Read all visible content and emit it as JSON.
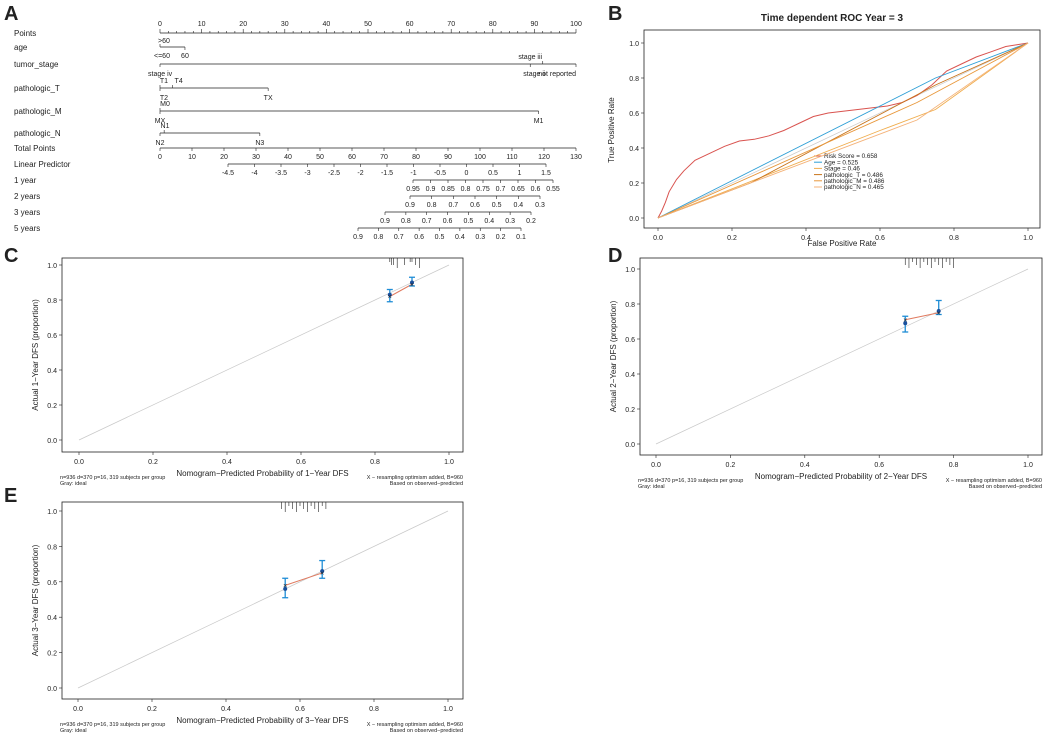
{
  "panels": {
    "A": "A",
    "B": "B",
    "C": "C",
    "D": "D",
    "E": "E"
  },
  "colors": {
    "ink": "#222222",
    "ideal": "#c9c9c9",
    "cal_line": "#e07a5f",
    "err": "#1f8dd6",
    "point": "#1a4f9c",
    "roc_risk": "#d9534f",
    "roc_age": "#2e9fd6",
    "roc_stage": "#f0ad4e",
    "roc_t": "#c8741a",
    "roc_m": "#e8973a",
    "roc_n": "#f4b37a"
  },
  "nomogram": {
    "rows": [
      {
        "label": "Points"
      },
      {
        "label": "age"
      },
      {
        "label": "tumor_stage"
      },
      {
        "label": "pathologic_T"
      },
      {
        "label": "pathologic_M"
      },
      {
        "label": "pathologic_N"
      },
      {
        "label": "Total Points"
      },
      {
        "label": "Linear Predictor"
      },
      {
        "label": "1 year"
      },
      {
        "label": "2 years"
      },
      {
        "label": "3 years"
      },
      {
        "label": "5 years"
      }
    ],
    "points_scale": {
      "min": 0,
      "max": 100,
      "labels": [
        0,
        10,
        20,
        30,
        40,
        50,
        60,
        70,
        80,
        90,
        100
      ]
    },
    "age": {
      "span": [
        0,
        6
      ],
      "labels": [
        ">60",
        "<=60",
        "60"
      ]
    },
    "tumor_stage": {
      "span": [
        0,
        100
      ],
      "labels": [
        "stage iii",
        "stage iv",
        "stage ii",
        "not reported"
      ]
    },
    "pathologic_T": {
      "span": [
        0,
        26
      ],
      "labels": [
        "T1",
        "T4",
        "T2",
        "TX"
      ]
    },
    "pathologic_M": {
      "span": [
        0,
        89
      ],
      "labels": [
        "M0",
        "MX",
        "M1"
      ]
    },
    "pathologic_N": {
      "span": [
        0,
        23
      ],
      "labels": [
        "N1",
        "N2",
        "N3"
      ]
    },
    "total_points": {
      "min": 0,
      "max": 130,
      "labels": [
        0,
        10,
        20,
        30,
        40,
        50,
        60,
        70,
        80,
        90,
        100,
        110,
        120,
        130
      ]
    },
    "linear_predictor": {
      "labels": [
        "-4.5",
        "-4",
        "-3.5",
        "-3",
        "-2.5",
        "-2",
        "-1.5",
        "-1",
        "-0.5",
        "0",
        "0.5",
        "1",
        "1.5"
      ]
    },
    "year1": {
      "labels": [
        "0.95",
        "0.9",
        "0.85",
        "0.8",
        "0.75",
        "0.7",
        "0.65",
        "0.6",
        "0.55"
      ]
    },
    "year2": {
      "labels": [
        "0.9",
        "0.8",
        "0.7",
        "0.6",
        "0.5",
        "0.4",
        "0.3"
      ]
    },
    "year3": {
      "labels": [
        "0.9",
        "0.8",
        "0.7",
        "0.6",
        "0.5",
        "0.4",
        "0.3",
        "0.2"
      ]
    },
    "year5": {
      "labels": [
        "0.9",
        "0.8",
        "0.7",
        "0.6",
        "0.5",
        "0.4",
        "0.3",
        "0.2",
        "0.1"
      ]
    }
  },
  "chart_data": [
    {
      "panel": "B",
      "type": "line",
      "title": "Time dependent ROC Year = 3",
      "xlabel": "False Positive Rate",
      "ylabel": "True Positive Rate",
      "xlim": [
        0,
        1
      ],
      "ylim": [
        0,
        1
      ],
      "ticks": [
        "0.0",
        "0.2",
        "0.4",
        "0.6",
        "0.8",
        "1.0"
      ],
      "legend_position": "bottom-right",
      "series": [
        {
          "name": "Risk Score = 0.658",
          "color_key": "roc_risk",
          "x": [
            0,
            0.01,
            0.02,
            0.03,
            0.05,
            0.07,
            0.1,
            0.14,
            0.18,
            0.22,
            0.26,
            0.3,
            0.34,
            0.38,
            0.42,
            0.46,
            0.5,
            0.54,
            0.58,
            0.62,
            0.66,
            0.7,
            0.74,
            0.78,
            0.82,
            0.86,
            0.9,
            0.94,
            0.97,
            1
          ],
          "y": [
            0,
            0.04,
            0.09,
            0.15,
            0.22,
            0.27,
            0.33,
            0.37,
            0.41,
            0.44,
            0.45,
            0.47,
            0.5,
            0.54,
            0.58,
            0.6,
            0.61,
            0.62,
            0.63,
            0.64,
            0.66,
            0.7,
            0.76,
            0.84,
            0.88,
            0.92,
            0.95,
            0.98,
            0.99,
            1
          ]
        },
        {
          "name": "Age = 0.525",
          "color_key": "roc_age",
          "x": [
            0,
            0.75,
            1
          ],
          "y": [
            0,
            0.8,
            1
          ]
        },
        {
          "name": "Stage = 0.46",
          "color_key": "roc_stage",
          "x": [
            0,
            0.6,
            0.75,
            1
          ],
          "y": [
            0,
            0.5,
            0.62,
            1
          ]
        },
        {
          "name": "pathologic_T = 0.486",
          "color_key": "roc_t",
          "x": [
            0,
            0.25,
            0.75,
            1
          ],
          "y": [
            0,
            0.2,
            0.76,
            1
          ]
        },
        {
          "name": "pathologic_M = 0.486",
          "color_key": "roc_m",
          "x": [
            0,
            0.7,
            1
          ],
          "y": [
            0,
            0.66,
            1
          ]
        },
        {
          "name": "pathologic_N = 0.465",
          "color_key": "roc_n",
          "x": [
            0,
            0.7,
            1
          ],
          "y": [
            0,
            0.56,
            1
          ]
        }
      ]
    },
    {
      "panel": "C",
      "type": "scatter",
      "xlabel": "Nomogram−Predicted Probability of 1−Year DFS",
      "ylabel": "Actual 1−Year DFS (proportion)",
      "xlim": [
        0,
        1
      ],
      "ylim": [
        0,
        1
      ],
      "xticks": [
        "0.0",
        "0.2",
        "0.4",
        "0.6",
        "0.8",
        "1.0"
      ],
      "yticks": [
        "0.0",
        "0.2",
        "0.4",
        "0.6",
        "0.8",
        "1.0"
      ],
      "points": [
        {
          "x": 0.84,
          "y": 0.83,
          "lo": 0.79,
          "hi": 0.86,
          "bias": 0.82
        },
        {
          "x": 0.9,
          "y": 0.9,
          "lo": 0.88,
          "hi": 0.93,
          "bias": 0.89
        }
      ],
      "rug": [
        0.84,
        0.845,
        0.85,
        0.86,
        0.88,
        0.895,
        0.9,
        0.91,
        0.92
      ],
      "footnote_left": [
        "n=936 d=370 p=16, 319 subjects per group",
        "Gray: ideal"
      ],
      "footnote_right": [
        "X − resampling optimism added, B=960",
        "Based on observed−predicted"
      ]
    },
    {
      "panel": "D",
      "type": "scatter",
      "xlabel": "Nomogram−Predicted Probability of 2−Year DFS",
      "ylabel": "Actual 2−Year DFS (proportion)",
      "xlim": [
        0,
        1
      ],
      "ylim": [
        0,
        1
      ],
      "xticks": [
        "0.0",
        "0.2",
        "0.4",
        "0.6",
        "0.8",
        "1.0"
      ],
      "yticks": [
        "0.0",
        "0.2",
        "0.4",
        "0.6",
        "0.8",
        "1.0"
      ],
      "points": [
        {
          "x": 0.67,
          "y": 0.69,
          "lo": 0.64,
          "hi": 0.73,
          "bias": 0.71
        },
        {
          "x": 0.76,
          "y": 0.76,
          "lo": 0.74,
          "hi": 0.82,
          "bias": 0.75
        }
      ],
      "rug": [
        0.67,
        0.68,
        0.69,
        0.7,
        0.71,
        0.72,
        0.73,
        0.74,
        0.75,
        0.76,
        0.77,
        0.78,
        0.79,
        0.8
      ],
      "footnote_left": [
        "n=936 d=370 p=16, 319 subjects per group",
        "Gray: ideal"
      ],
      "footnote_right": [
        "X − resampling optimism added, B=960",
        "Based on observed−predicted"
      ]
    },
    {
      "panel": "E",
      "type": "scatter",
      "xlabel": "Nomogram−Predicted Probability of 3−Year DFS",
      "ylabel": "Actual 3−Year DFS (proportion)",
      "xlim": [
        0,
        1
      ],
      "ylim": [
        0,
        1
      ],
      "xticks": [
        "0.0",
        "0.2",
        "0.4",
        "0.6",
        "0.8",
        "1.0"
      ],
      "yticks": [
        "0.0",
        "0.2",
        "0.4",
        "0.6",
        "0.8",
        "1.0"
      ],
      "points": [
        {
          "x": 0.56,
          "y": 0.56,
          "lo": 0.51,
          "hi": 0.62,
          "bias": 0.58
        },
        {
          "x": 0.66,
          "y": 0.66,
          "lo": 0.62,
          "hi": 0.72,
          "bias": 0.65
        }
      ],
      "rug": [
        0.55,
        0.56,
        0.57,
        0.58,
        0.59,
        0.6,
        0.61,
        0.62,
        0.63,
        0.64,
        0.65,
        0.66,
        0.67
      ],
      "footnote_left": [
        "n=936 d=370 p=16, 319 subjects per group",
        "Gray: ideal"
      ],
      "footnote_right": [
        "X − resampling optimism added, B=960",
        "Based on observed−predicted"
      ]
    }
  ]
}
